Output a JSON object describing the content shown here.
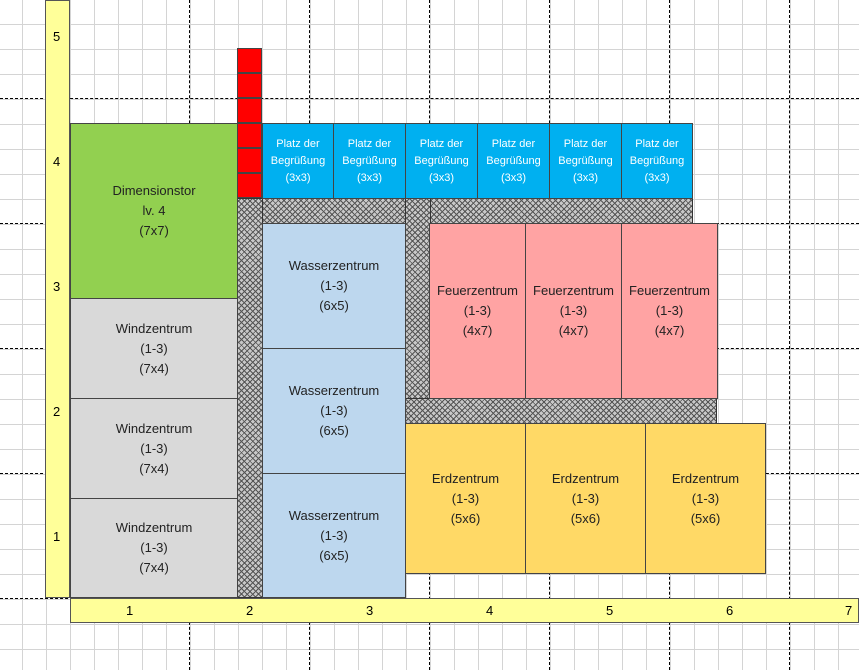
{
  "y_axis": [
    "1",
    "2",
    "3",
    "4",
    "5"
  ],
  "x_axis": [
    "1",
    "2",
    "3",
    "4",
    "5",
    "6",
    "7"
  ],
  "dimension_gate": {
    "name": "Dimensionstor",
    "level": "lv. 4",
    "size": "(7x7)"
  },
  "wind_centers": [
    {
      "name": "Windzentrum",
      "range": "(1-3)",
      "size": "(7x4)"
    },
    {
      "name": "Windzentrum",
      "range": "(1-3)",
      "size": "(7x4)"
    },
    {
      "name": "Windzentrum",
      "range": "(1-3)",
      "size": "(7x4)"
    }
  ],
  "water_centers": [
    {
      "name": "Wasserzentrum",
      "range": "(1-3)",
      "size": "(6x5)"
    },
    {
      "name": "Wasserzentrum",
      "range": "(1-3)",
      "size": "(6x5)"
    },
    {
      "name": "Wasserzentrum",
      "range": "(1-3)",
      "size": "(6x5)"
    }
  ],
  "fire_centers": [
    {
      "name": "Feuerzentrum",
      "range": "(1-3)",
      "size": "(4x7)"
    },
    {
      "name": "Feuerzentrum",
      "range": "(1-3)",
      "size": "(4x7)"
    },
    {
      "name": "Feuerzentrum",
      "range": "(1-3)",
      "size": "(4x7)"
    }
  ],
  "earth_centers": [
    {
      "name": "Erdzentrum",
      "range": "(1-3)",
      "size": "(5x6)"
    },
    {
      "name": "Erdzentrum",
      "range": "(1-3)",
      "size": "(5x6)"
    },
    {
      "name": "Erdzentrum",
      "range": "(1-3)",
      "size": "(5x6)"
    }
  ],
  "welcome_plazas": [
    {
      "line1": "Platz der",
      "line2": "Begrüßung",
      "size": "(3x3)"
    },
    {
      "line1": "Platz der",
      "line2": "Begrüßung",
      "size": "(3x3)"
    },
    {
      "line1": "Platz der",
      "line2": "Begrüßung",
      "size": "(3x3)"
    },
    {
      "line1": "Platz der",
      "line2": "Begrüßung",
      "size": "(3x3)"
    },
    {
      "line1": "Platz der",
      "line2": "Begrüßung",
      "size": "(3x3)"
    },
    {
      "line1": "Platz der",
      "line2": "Begrüßung",
      "size": "(3x3)"
    }
  ],
  "colors": {
    "gate": "#92d050",
    "wind": "#d9d9d9",
    "water": "#bdd7ee",
    "fire": "#ffa3a3",
    "earth": "#ffd966",
    "plaza": "#00b0f0",
    "marker": "#ff0000",
    "axis": "#ffff99"
  }
}
